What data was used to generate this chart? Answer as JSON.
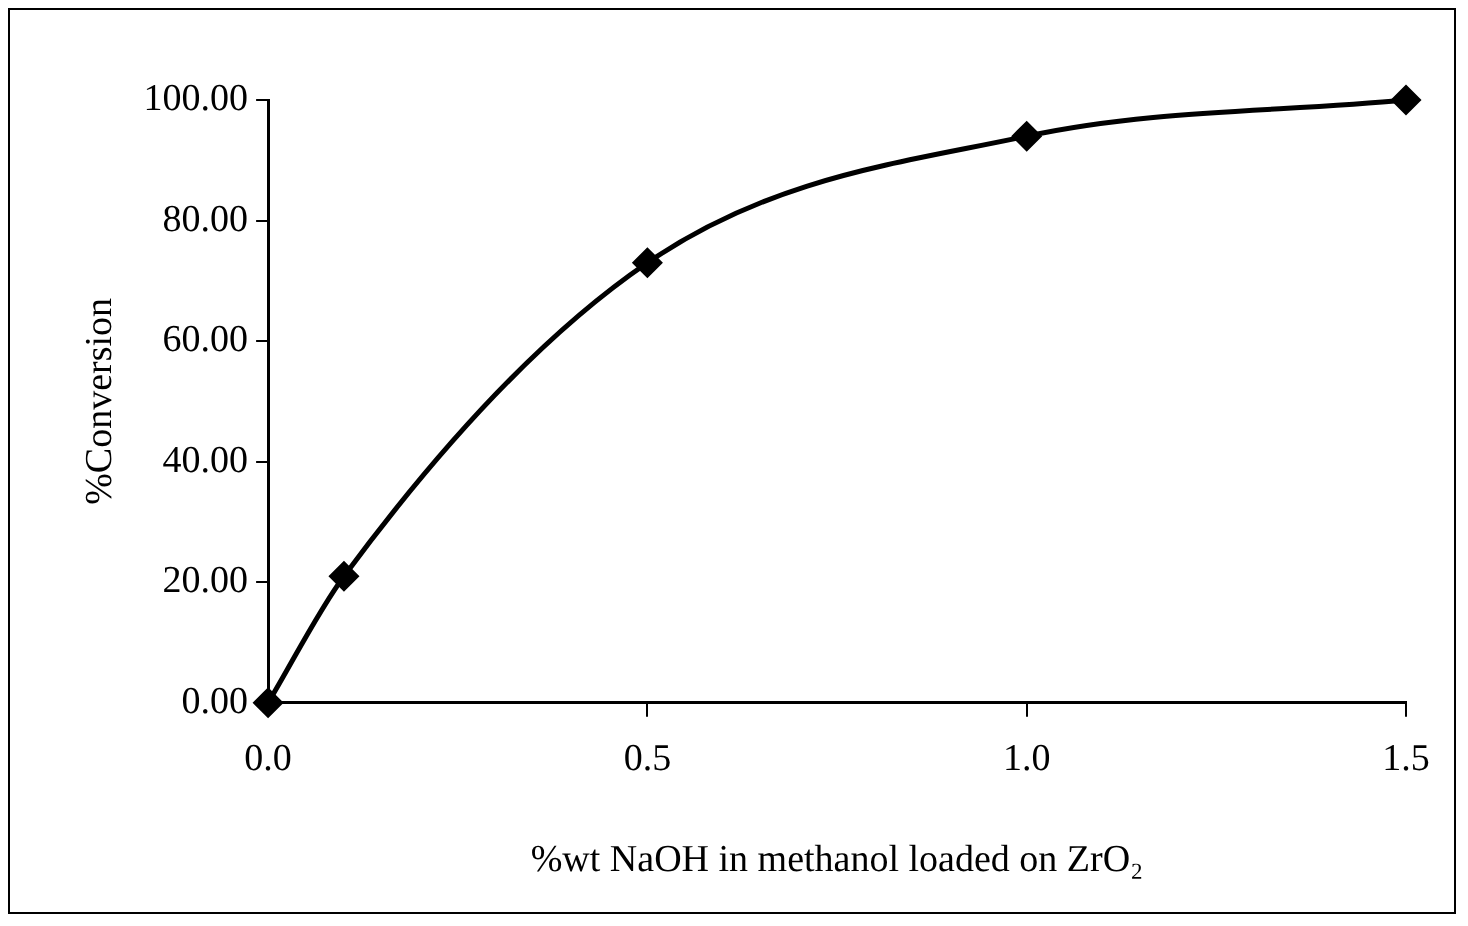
{
  "chart_data": {
    "type": "line",
    "xlabel": "%wt NaOH in methanol loaded on ZrO₂",
    "ylabel": "%Conversion",
    "x": [
      0,
      0.1,
      0.5,
      1.0,
      1.5
    ],
    "series": [
      {
        "color": "#000000",
        "values": [
          0,
          21,
          73,
          94,
          100
        ]
      }
    ],
    "xlim": [
      0,
      1.5
    ],
    "xticks": [
      {
        "value": 0,
        "label": "0.0"
      },
      {
        "value": 0.5,
        "label": "0.5"
      },
      {
        "value": 1,
        "label": "1.0"
      },
      {
        "value": 1.5,
        "label": "1.5"
      }
    ],
    "ylim": [
      0,
      100
    ],
    "yticks": [
      {
        "value": 0,
        "label": "0.00"
      },
      {
        "value": 20,
        "label": "20.00"
      },
      {
        "value": 40,
        "label": "40.00"
      },
      {
        "value": 60,
        "label": "60.00"
      },
      {
        "value": 80,
        "label": "80.00"
      },
      {
        "value": 100,
        "label": "100.00"
      }
    ],
    "grid": false,
    "legend": false,
    "marker": "diamond",
    "line_style": "solid"
  }
}
